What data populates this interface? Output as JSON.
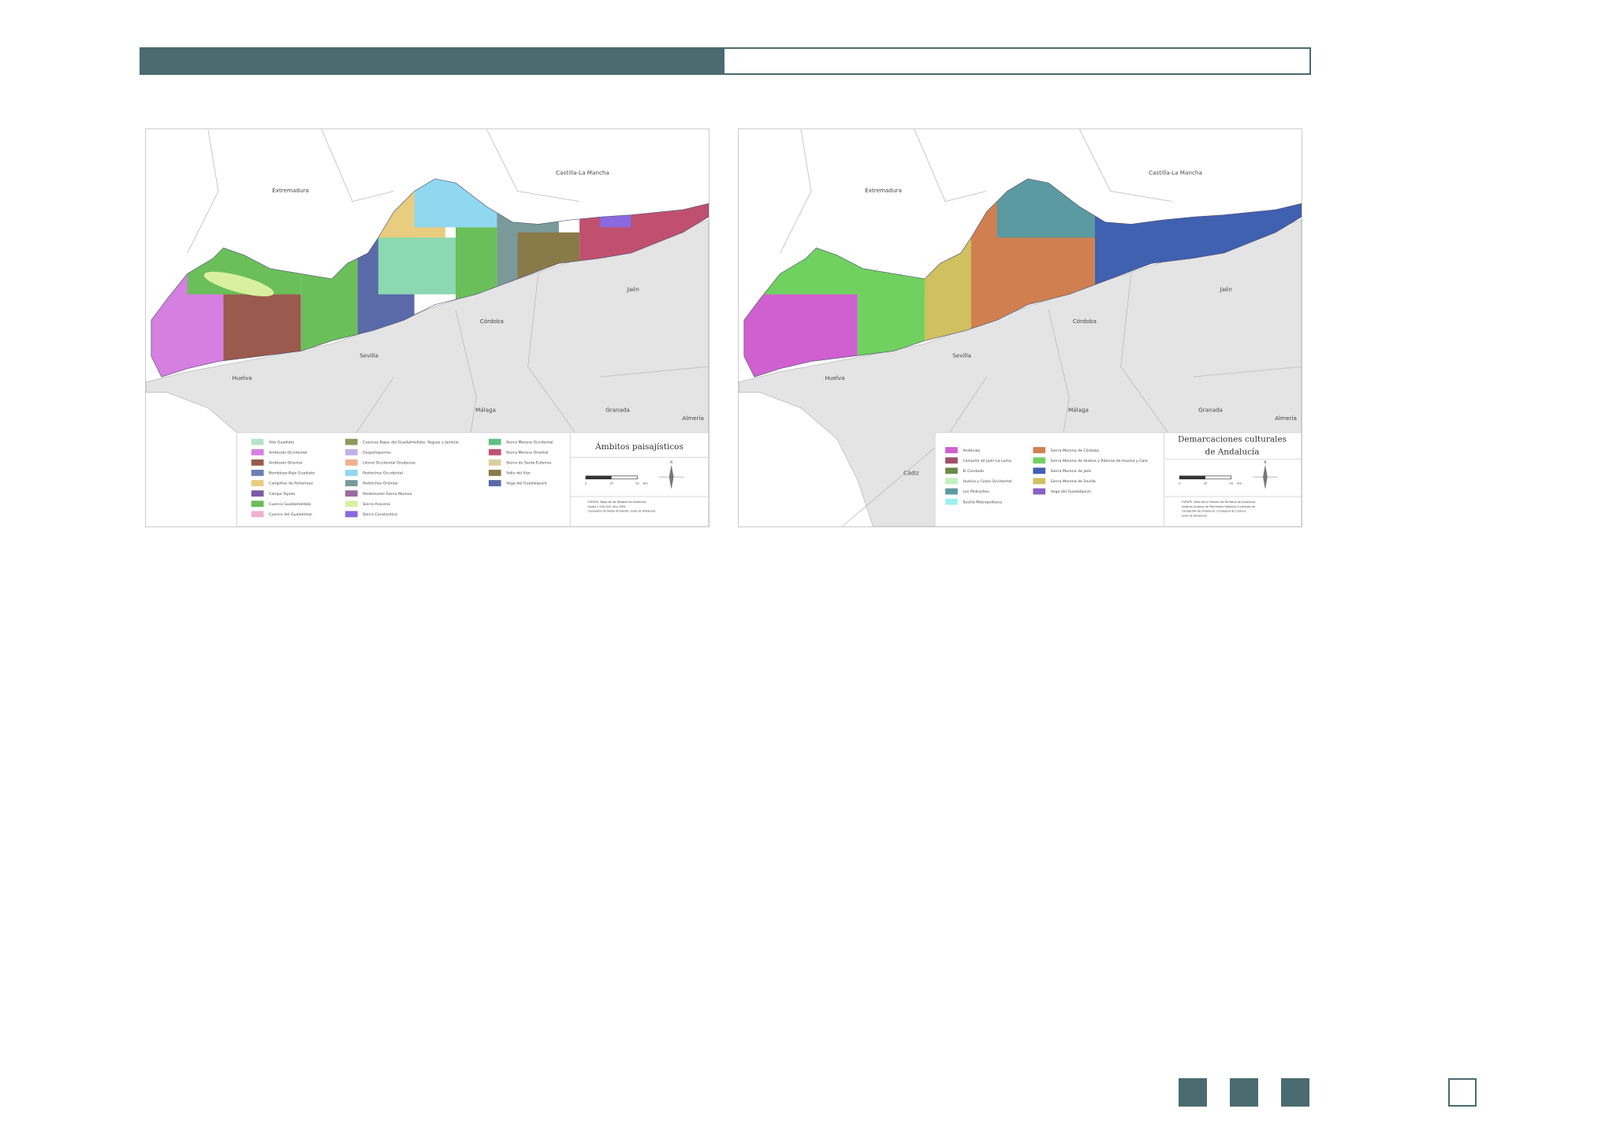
{
  "maps": [
    {
      "place_labels": [
        "Extremadura",
        "Castilla-La Mancha",
        "Jaén",
        "Córdoba",
        "Sevilla",
        "Huelva",
        "Málaga",
        "Granada",
        "Almería"
      ],
      "title": [
        "Ámbitos paisajísticos"
      ],
      "legend": [
        {
          "label": "Alto Guadiato",
          "color": "#b3e6c8"
        },
        {
          "label": "Andévalo Occidental",
          "color": "#d57fe0"
        },
        {
          "label": "Andévalo Oriental",
          "color": "#9a5a4e"
        },
        {
          "label": "Bembézar-Bajo Guadiato",
          "color": "#6b7fb8"
        },
        {
          "label": "Campiñas de Peñarroya",
          "color": "#e8cc80"
        },
        {
          "label": "Campo Tejada",
          "color": "#7a5aa8"
        },
        {
          "label": "Cuenca Guadalmellato",
          "color": "#6bbf5a"
        },
        {
          "label": "Cuenca del Guadalimar",
          "color": "#f0b0d0"
        },
        {
          "label": "Cuencas Bajas del Guadalmellato, Yeguas y Jándula",
          "color": "#8a9a5a"
        },
        {
          "label": "Despeñaperros",
          "color": "#c0b0e8"
        },
        {
          "label": "Litoral Occidental Onubense",
          "color": "#f0b090"
        },
        {
          "label": "Pedroches Occidental",
          "color": "#90d8f0"
        },
        {
          "label": "Pedroches Oriental",
          "color": "#7a9a9a"
        },
        {
          "label": "Piedemonte Sierra Morena",
          "color": "#9a6aa0"
        },
        {
          "label": "Sierra Aracena",
          "color": "#d8f0a0"
        },
        {
          "label": "Sierra Constantina",
          "color": "#8a6ae0"
        },
        {
          "label": "Sierra Morena Occidental",
          "color": "#60c080"
        },
        {
          "label": "Sierra Morena Oriental",
          "color": "#c05070"
        },
        {
          "label": "Sierra de Santa Eufemia",
          "color": "#d8d0a0"
        },
        {
          "label": "Valle del Viar",
          "color": "#8a7a4a"
        },
        {
          "label": "Vega del Guadalquivir",
          "color": "#5a6aa8"
        }
      ],
      "scale": [
        "0",
        "25",
        "50",
        "Km"
      ],
      "compass": "N",
      "source": [
        "FUENTE: Mapa de los Paisajes de Andalucía.",
        "Escala 1:100.000. Año 2005.",
        "Consejería de Medio Ambiente. Junta de Andalucía."
      ]
    },
    {
      "place_labels": [
        "Extremadura",
        "Castilla-La Mancha",
        "Jaén",
        "Córdoba",
        "Sevilla",
        "Huelva",
        "Málaga",
        "Granada",
        "Almería",
        "Cádiz"
      ],
      "title": [
        "Demarcaciones culturales",
        "de Andalucía"
      ],
      "legend": [
        {
          "label": "Andévalo",
          "color": "#d060d0"
        },
        {
          "label": "Campiña de Jaén-La Loma",
          "color": "#a0506a"
        },
        {
          "label": "El Condado",
          "color": "#6a8a4a"
        },
        {
          "label": "Huelva y Costa Occidental",
          "color": "#c0f0c0"
        },
        {
          "label": "Los Pedroches",
          "color": "#5a9aa0"
        },
        {
          "label": "Sevilla Metropolitana",
          "color": "#a0f0f0"
        },
        {
          "label": "Sierra Morena de Córdoba",
          "color": "#d08050"
        },
        {
          "label": "Sierra Morena de Huelva y Riberas de Huelva y Cala",
          "color": "#70d060"
        },
        {
          "label": "Sierra Morena de Jaén",
          "color": "#4060b0"
        },
        {
          "label": "Sierra Morena de Sevilla",
          "color": "#d0c060"
        },
        {
          "label": "Vega del Guadalquivir",
          "color": "#8a60c0"
        }
      ],
      "scale": [
        "0",
        "25",
        "50",
        "Km"
      ],
      "compass": "N",
      "source": [
        "FUENTE: Atlas de la Historia del Territorio de Andalucía.",
        "Instituto Andaluz de Patrimonio Histórico e Instituto de",
        "Cartografía de Andalucía. Consejería de Cultura.",
        "Junta de Andalucía."
      ]
    }
  ]
}
